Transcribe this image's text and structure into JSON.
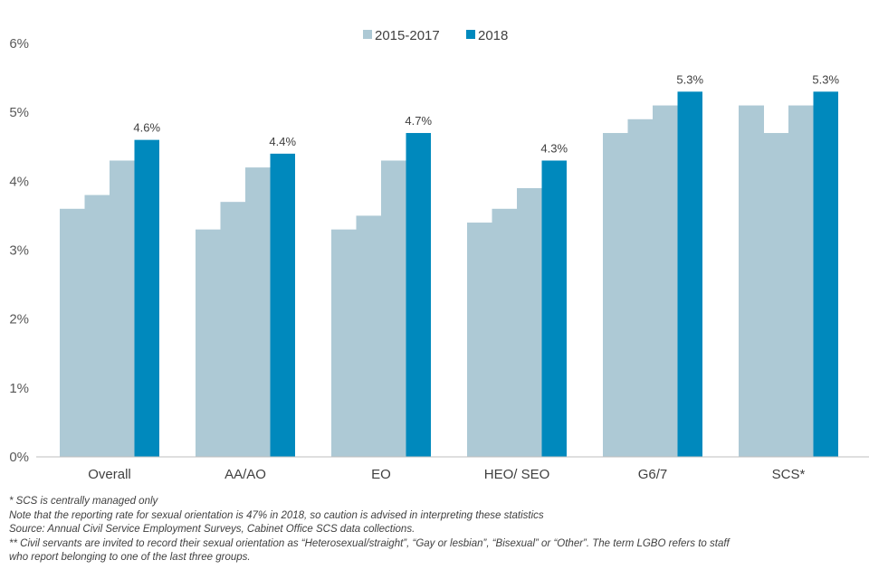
{
  "colors": {
    "historic": "#adc9d5",
    "current": "#0089bd",
    "axis": "#bfbfbf"
  },
  "legend": {
    "items": [
      "2015-2017",
      "2018"
    ]
  },
  "chart_data": {
    "type": "bar",
    "title": "",
    "xlabel": "",
    "ylabel": "",
    "ylim": [
      0,
      6
    ],
    "yticks": [
      "0%",
      "1%",
      "2%",
      "3%",
      "4%",
      "5%",
      "6%"
    ],
    "legend_position": "top-center",
    "categories": [
      "Overall",
      "AA/AO",
      "EO",
      "HEO/ SEO",
      "G6/7",
      "SCS*"
    ],
    "series": [
      {
        "name": "2015-2017",
        "style": "stepped",
        "values": [
          [
            3.6,
            3.8,
            4.3
          ],
          [
            3.3,
            3.7,
            4.2
          ],
          [
            3.3,
            3.5,
            4.3
          ],
          [
            3.4,
            3.6,
            3.9
          ],
          [
            4.7,
            4.9,
            5.1
          ],
          [
            5.1,
            4.7,
            5.1
          ]
        ]
      },
      {
        "name": "2018",
        "values": [
          4.6,
          4.4,
          4.7,
          4.3,
          5.3,
          5.3
        ],
        "labels": [
          "4.6%",
          "4.4%",
          "4.7%",
          "4.3%",
          "5.3%",
          "5.3%"
        ]
      }
    ]
  },
  "notes": [
    "* SCS is centrally managed only",
    "Note that the reporting rate for sexual orientation is 47% in 2018, so caution is advised in interpreting these statistics",
    "Source: Annual Civil Service Employment Surveys, Cabinet Office SCS data collections.",
    "** Civil servants are invited to record their sexual orientation as “Heterosexual/straight”,  “Gay or lesbian”, “Bisexual” or “Other”.  The term LGBO refers to staff",
    "who report belonging to one of the last three groups."
  ]
}
